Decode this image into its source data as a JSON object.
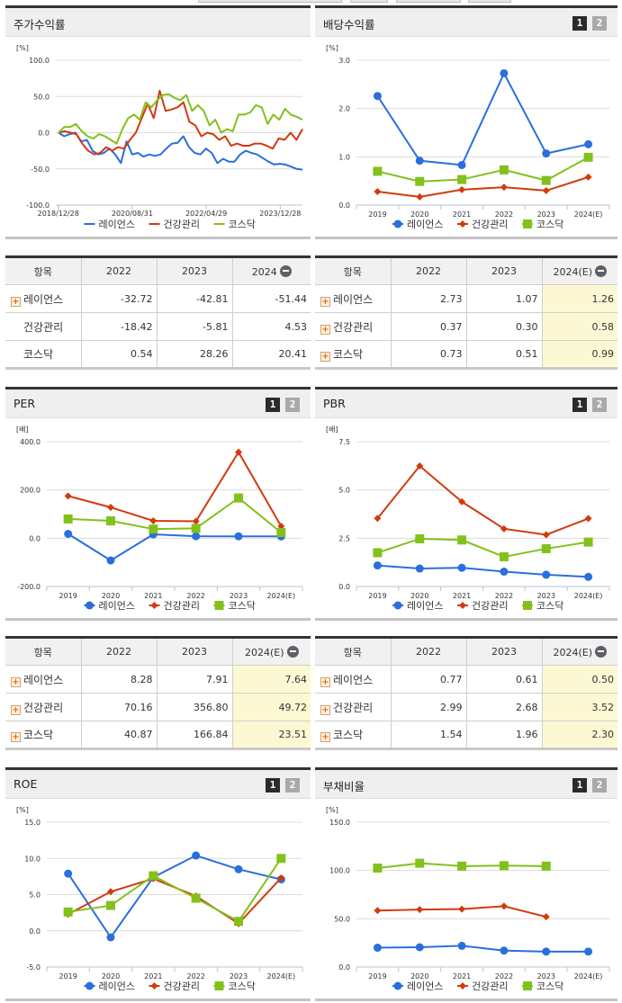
{
  "legend": {
    "series": [
      {
        "name": "레이언스",
        "color": "#2a6fdc",
        "marker": "circle"
      },
      {
        "name": "건강관리",
        "color": "#d13b0c",
        "marker": "diamond"
      },
      {
        "name": "코스닥",
        "color": "#82c11b",
        "marker": "square"
      }
    ]
  },
  "pager": {
    "page1": "1",
    "page2": "2"
  },
  "sections": {
    "stock_return": {
      "title": "주가수익률",
      "unit": "[%]",
      "table": {
        "headers": [
          "항목",
          "2022",
          "2023",
          "2024"
        ],
        "rows": [
          {
            "name": "레이언스",
            "expandable": true,
            "values": [
              "-32.72",
              "-42.81",
              "-51.44"
            ]
          },
          {
            "name": "건강관리",
            "expandable": false,
            "values": [
              "-18.42",
              "-5.81",
              "4.53"
            ]
          },
          {
            "name": "코스닥",
            "expandable": false,
            "values": [
              "0.54",
              "28.26",
              "20.41"
            ]
          }
        ]
      }
    },
    "dividend_yield": {
      "title": "배당수익률",
      "unit": "[%]",
      "table": {
        "headers": [
          "항목",
          "2022",
          "2023",
          "2024(E)"
        ],
        "rows": [
          {
            "name": "레이언스",
            "expandable": true,
            "values": [
              "2.73",
              "1.07",
              "1.26"
            ]
          },
          {
            "name": "건강관리",
            "expandable": true,
            "values": [
              "0.37",
              "0.30",
              "0.58"
            ]
          },
          {
            "name": "코스닥",
            "expandable": true,
            "values": [
              "0.73",
              "0.51",
              "0.99"
            ]
          }
        ]
      }
    },
    "per": {
      "title": "PER",
      "unit": "[배]",
      "table": {
        "headers": [
          "항목",
          "2022",
          "2023",
          "2024(E)"
        ],
        "rows": [
          {
            "name": "레이언스",
            "expandable": true,
            "values": [
              "8.28",
              "7.91",
              "7.64"
            ]
          },
          {
            "name": "건강관리",
            "expandable": true,
            "values": [
              "70.16",
              "356.80",
              "49.72"
            ]
          },
          {
            "name": "코스닥",
            "expandable": true,
            "values": [
              "40.87",
              "166.84",
              "23.51"
            ]
          }
        ]
      }
    },
    "pbr": {
      "title": "PBR",
      "unit": "[배]",
      "table": {
        "headers": [
          "항목",
          "2022",
          "2023",
          "2024(E)"
        ],
        "rows": [
          {
            "name": "레이언스",
            "expandable": true,
            "values": [
              "0.77",
              "0.61",
              "0.50"
            ]
          },
          {
            "name": "건강관리",
            "expandable": true,
            "values": [
              "2.99",
              "2.68",
              "3.52"
            ]
          },
          {
            "name": "코스닥",
            "expandable": true,
            "values": [
              "1.54",
              "1.96",
              "2.30"
            ]
          }
        ]
      }
    },
    "roe": {
      "title": "ROE",
      "unit": "[%]"
    },
    "debt_ratio": {
      "title": "부채비율",
      "unit": "[%]"
    }
  },
  "chart_data": [
    {
      "id": "stock_return",
      "type": "line",
      "title": "주가수익률",
      "ylabel": "[%]",
      "ylim": [
        -100,
        100
      ],
      "yticks": [
        "100.0",
        "50.0",
        "0.0",
        "-50.0",
        "-100.0"
      ],
      "xticks": [
        "2018/12/28",
        "2020/08/31",
        "2022/04/29",
        "2023/12/28"
      ],
      "grid": true,
      "legend_position": "bottom",
      "series": [
        {
          "name": "레이언스",
          "values": [
            0,
            -5,
            -2,
            0,
            -12,
            -10,
            -25,
            -30,
            -28,
            -22,
            -30,
            -42,
            -12,
            -30,
            -28,
            -33,
            -30,
            -32,
            -30,
            -22,
            -15,
            -14,
            -5,
            -20,
            -28,
            -30,
            -22,
            -28,
            -42,
            -36,
            -40,
            -40,
            -30,
            -25,
            -28,
            -30,
            -35,
            -40,
            -44,
            -43,
            -44,
            -47,
            -50,
            -51
          ]
        },
        {
          "name": "건강관리",
          "values": [
            0,
            2,
            0,
            -2,
            -15,
            -25,
            -30,
            -28,
            -20,
            -25,
            -20,
            -22,
            -10,
            0,
            20,
            40,
            20,
            58,
            30,
            32,
            35,
            42,
            15,
            10,
            -5,
            0,
            -2,
            -10,
            -5,
            -18,
            -15,
            -18,
            -18,
            -15,
            -15,
            -18,
            -22,
            -8,
            -10,
            0,
            -10,
            5
          ]
        },
        {
          "name": "코스닥",
          "values": [
            0,
            8,
            8,
            12,
            2,
            -5,
            -8,
            -2,
            -5,
            -10,
            -15,
            5,
            20,
            25,
            18,
            42,
            35,
            45,
            52,
            53,
            48,
            45,
            52,
            30,
            38,
            30,
            10,
            18,
            0,
            5,
            2,
            25,
            25,
            28,
            38,
            35,
            12,
            25,
            18,
            33,
            25,
            22,
            18
          ]
        }
      ]
    },
    {
      "id": "dividend_yield",
      "type": "line",
      "title": "배당수익률",
      "ylabel": "[%]",
      "ylim": [
        0,
        3
      ],
      "yticks": [
        "3.0",
        "2.0",
        "1.0",
        "0.0"
      ],
      "categories": [
        "2019",
        "2020",
        "2021",
        "2022",
        "2023",
        "2024(E)"
      ],
      "grid": true,
      "legend_position": "bottom",
      "series": [
        {
          "name": "레이언스",
          "values": [
            2.26,
            0.92,
            0.83,
            2.73,
            1.07,
            1.26
          ]
        },
        {
          "name": "건강관리",
          "values": [
            0.28,
            0.17,
            0.32,
            0.37,
            0.3,
            0.58
          ]
        },
        {
          "name": "코스닥",
          "values": [
            0.7,
            0.49,
            0.53,
            0.73,
            0.51,
            0.99
          ]
        }
      ]
    },
    {
      "id": "per",
      "type": "line",
      "title": "PER",
      "ylabel": "[배]",
      "ylim": [
        -200,
        400
      ],
      "yticks": [
        "400.0",
        "200.0",
        "0.0",
        "-200.0"
      ],
      "categories": [
        "2019",
        "2020",
        "2021",
        "2022",
        "2023",
        "2024(E)"
      ],
      "grid": true,
      "legend_position": "bottom",
      "series": [
        {
          "name": "레이언스",
          "values": [
            18,
            -92,
            16,
            8.28,
            7.91,
            7.64
          ]
        },
        {
          "name": "건강관리",
          "values": [
            175,
            128,
            72,
            70.16,
            356.8,
            49.72
          ]
        },
        {
          "name": "코스닥",
          "values": [
            80,
            72,
            38,
            40.87,
            166.84,
            23.51
          ]
        }
      ]
    },
    {
      "id": "pbr",
      "type": "line",
      "title": "PBR",
      "ylabel": "[배]",
      "ylim": [
        0,
        7.5
      ],
      "yticks": [
        "7.5",
        "5.0",
        "2.5",
        "0.0"
      ],
      "categories": [
        "2019",
        "2020",
        "2021",
        "2022",
        "2023",
        "2024(E)"
      ],
      "grid": true,
      "legend_position": "bottom",
      "series": [
        {
          "name": "레이언스",
          "values": [
            1.09,
            0.93,
            0.97,
            0.77,
            0.61,
            0.5
          ]
        },
        {
          "name": "건강관리",
          "values": [
            3.53,
            6.24,
            4.39,
            2.99,
            2.68,
            3.52
          ]
        },
        {
          "name": "코스닥",
          "values": [
            1.75,
            2.47,
            2.41,
            1.54,
            1.96,
            2.3
          ]
        }
      ]
    },
    {
      "id": "roe",
      "type": "line",
      "title": "ROE",
      "ylabel": "[%]",
      "ylim": [
        -5,
        15
      ],
      "yticks": [
        "15.0",
        "10.0",
        "5.0",
        "0.0",
        "-5.0"
      ],
      "categories": [
        "2019",
        "2020",
        "2021",
        "2022",
        "2023",
        "2024(E)"
      ],
      "grid": true,
      "legend_position": "bottom",
      "series": [
        {
          "name": "레이언스",
          "values": [
            7.9,
            -0.9,
            7.4,
            10.4,
            8.5,
            7.1
          ]
        },
        {
          "name": "건강관리",
          "values": [
            2.3,
            5.4,
            7.2,
            4.8,
            1.0,
            7.3
          ]
        },
        {
          "name": "코스닥",
          "values": [
            2.6,
            3.5,
            7.6,
            4.5,
            1.3,
            10.0
          ]
        }
      ]
    },
    {
      "id": "debt_ratio",
      "type": "line",
      "title": "부채비율",
      "ylabel": "[%]",
      "ylim": [
        0,
        150
      ],
      "yticks": [
        "150.0",
        "100.0",
        "50.0",
        "0.0"
      ],
      "categories": [
        "2019",
        "2020",
        "2021",
        "2022",
        "2023",
        "2024(E)"
      ],
      "grid": true,
      "legend_position": "bottom",
      "series": [
        {
          "name": "레이언스",
          "values": [
            20,
            20.5,
            22,
            17,
            16,
            16
          ]
        },
        {
          "name": "건강관리",
          "values": [
            58.5,
            59.5,
            60,
            63,
            52,
            null
          ]
        },
        {
          "name": "코스닥",
          "values": [
            102.5,
            107.5,
            104.5,
            105,
            104.5,
            null
          ]
        }
      ]
    }
  ]
}
